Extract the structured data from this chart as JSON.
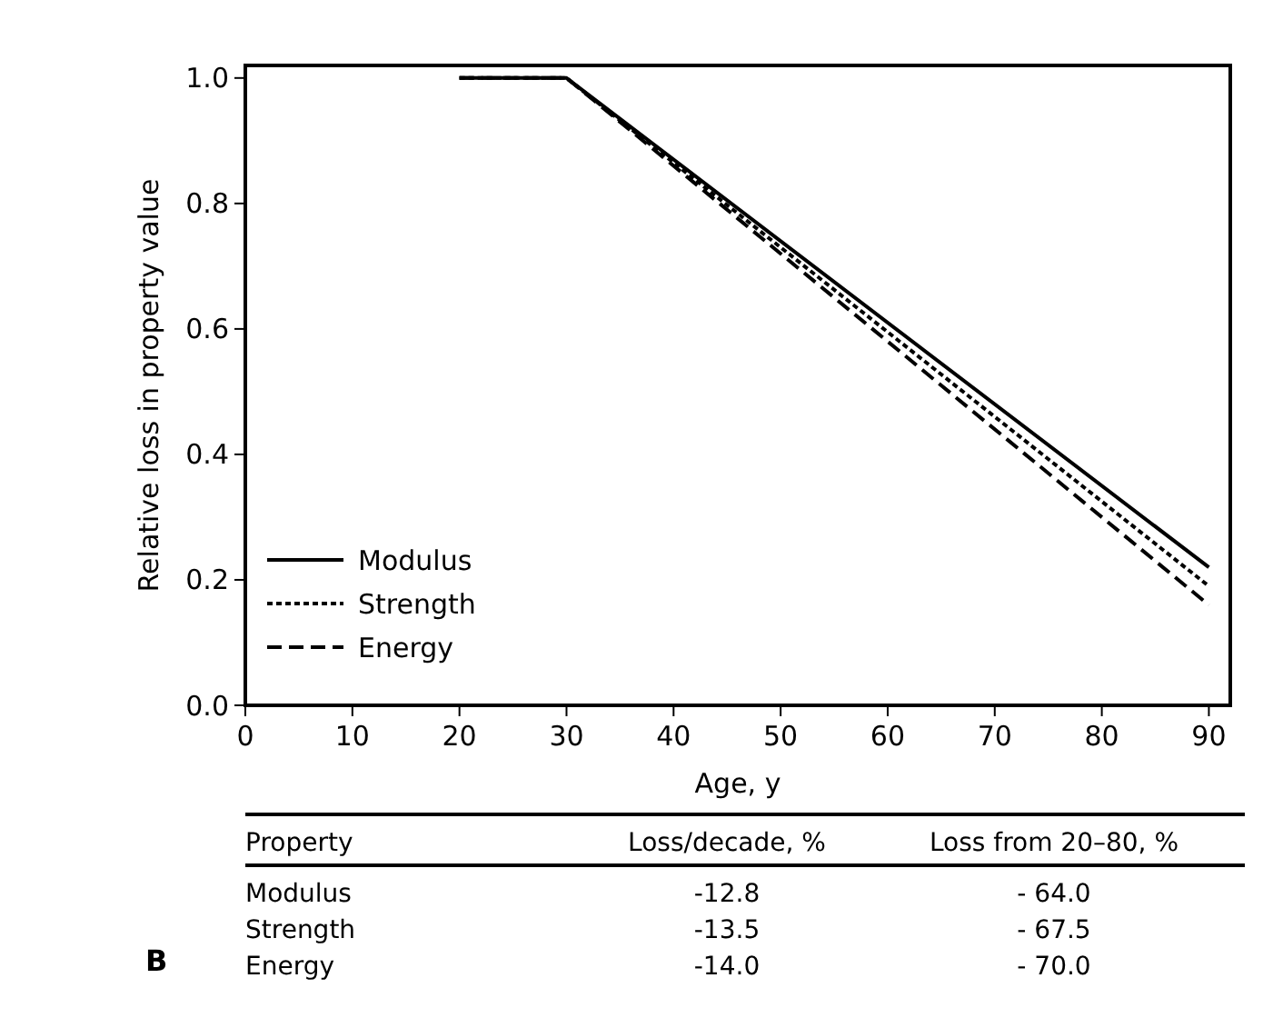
{
  "chart_data": {
    "type": "line",
    "xlabel": "Age, y",
    "ylabel": "Relative loss in property value",
    "xlim": [
      0,
      92
    ],
    "ylim": [
      0,
      1.02
    ],
    "xticks": [
      0,
      10,
      20,
      30,
      40,
      50,
      60,
      70,
      80,
      90
    ],
    "yticks": [
      {
        "value": 0,
        "label": "0.0"
      },
      {
        "value": 0.2,
        "label": "0.2"
      },
      {
        "value": 0.4,
        "label": "0.4"
      },
      {
        "value": 0.6,
        "label": "0.6"
      },
      {
        "value": 0.8,
        "label": "0.8"
      },
      {
        "value": 1,
        "label": "1.0"
      }
    ],
    "x": [
      20,
      30,
      90
    ],
    "series": [
      {
        "name": "Modulus",
        "color": "#000000",
        "values": [
          1,
          1,
          0.22
        ],
        "line_style": "solid"
      },
      {
        "name": "Strength",
        "color": "#000000",
        "values": [
          1,
          1,
          0.19
        ],
        "line_style": "dotted"
      },
      {
        "name": "Energy",
        "color": "#000000",
        "values": [
          1,
          1,
          0.16
        ],
        "line_style": "dashed"
      }
    ],
    "grid": false,
    "legend": "bottom left",
    "annotations": [
      "B",
      "Property",
      "Loss/decade, %",
      "Loss from 20–80, %",
      "Modulus",
      "-12.8",
      "- 64.0",
      "Strength",
      "-13.5",
      "- 67.5",
      "Energy",
      "-14.0",
      "- 70.0"
    ]
  }
}
